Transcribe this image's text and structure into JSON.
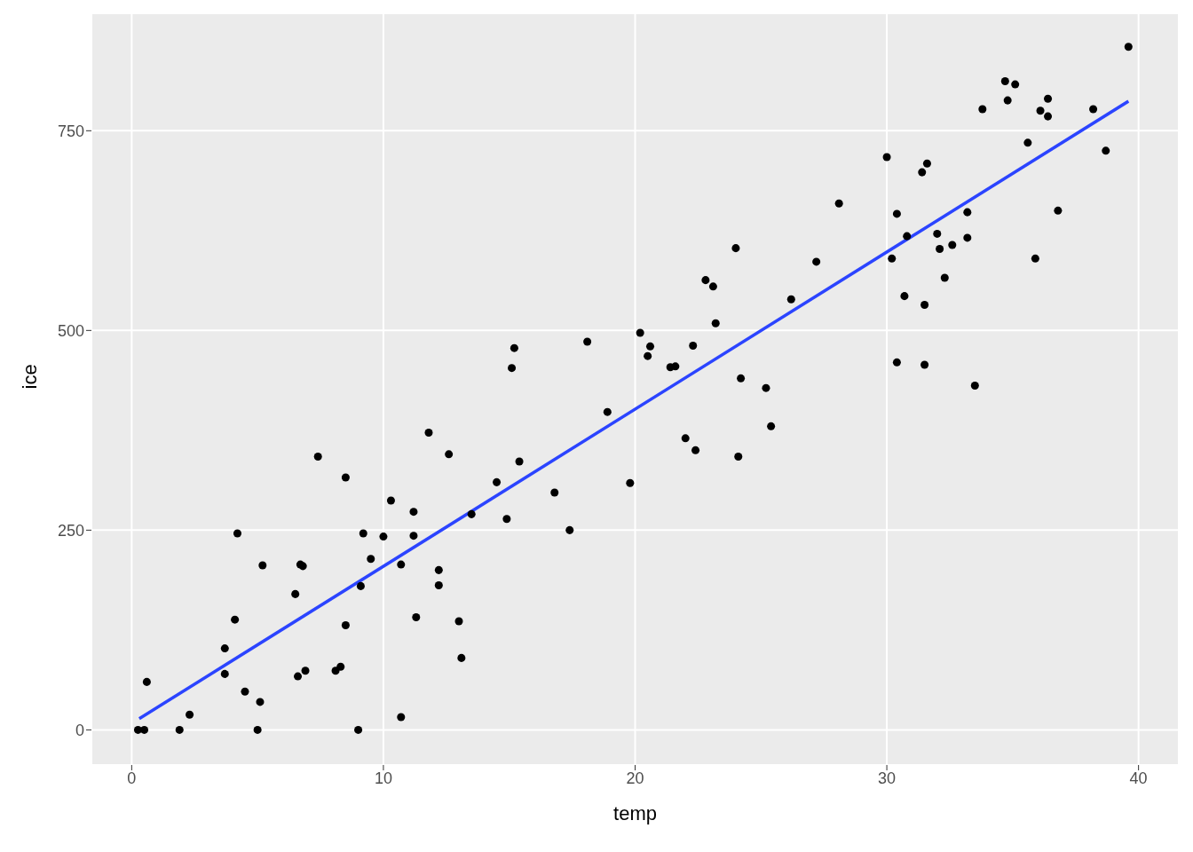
{
  "chart_data": {
    "type": "scatter",
    "xlabel": "temp",
    "ylabel": "ice",
    "xlim": [
      -1.6,
      41.6
    ],
    "ylim": [
      -44,
      897
    ],
    "xticks": [
      0,
      10,
      20,
      30,
      40
    ],
    "yticks": [
      0,
      250,
      500,
      750
    ],
    "grid": true,
    "marker": "circle",
    "x": [
      0.25,
      0.5,
      0.6,
      1.9,
      2.3,
      3.7,
      3.7,
      4.1,
      4.2,
      4.5,
      5.0,
      5.1,
      5.2,
      6.5,
      6.6,
      6.7,
      6.8,
      6.9,
      7.4,
      8.1,
      8.3,
      8.5,
      8.5,
      9.0,
      9.1,
      9.2,
      9.5,
      10.0,
      10.3,
      10.7,
      10.7,
      11.2,
      11.2,
      11.3,
      11.8,
      12.2,
      12.2,
      12.6,
      13.0,
      13.1,
      13.5,
      14.5,
      14.9,
      15.1,
      15.2,
      15.4,
      16.8,
      17.4,
      18.1,
      18.9,
      19.8,
      20.2,
      20.5,
      20.6,
      21.4,
      21.6,
      22.0,
      22.3,
      22.4,
      22.8,
      23.1,
      23.2,
      24.0,
      24.1,
      24.2,
      25.2,
      25.4,
      26.2,
      27.2,
      28.1,
      30.0,
      30.2,
      30.4,
      30.4,
      30.7,
      30.8,
      31.4,
      31.6,
      31.5,
      31.5,
      32.0,
      32.1,
      32.3,
      32.6,
      33.2,
      33.2,
      33.5,
      33.8,
      34.7,
      34.8,
      35.1,
      35.6,
      35.9,
      36.1,
      36.4,
      36.4,
      36.8,
      38.2,
      38.7,
      39.6
    ],
    "series": [
      {
        "color": "#000000",
        "values": [
          0,
          0,
          60,
          0,
          19,
          102,
          70,
          138,
          246,
          48,
          0,
          35,
          206,
          170,
          67,
          207,
          205,
          74,
          342,
          74,
          79,
          316,
          131,
          0,
          180,
          246,
          214,
          242,
          287,
          207,
          16,
          273,
          243,
          141,
          372,
          200,
          181,
          345,
          136,
          90,
          270,
          310,
          264,
          453,
          478,
          336,
          297,
          250,
          486,
          398,
          309,
          497,
          468,
          480,
          454,
          455,
          365,
          481,
          350,
          563,
          555,
          509,
          603,
          342,
          440,
          428,
          380,
          539,
          586,
          659,
          717,
          590,
          460,
          646,
          543,
          618,
          698,
          709,
          532,
          457,
          621,
          602,
          566,
          607,
          648,
          616,
          431,
          777,
          812,
          788,
          808,
          735,
          590,
          775,
          768,
          790,
          650,
          777,
          725,
          855
        ]
      },
      {
        "type": "line",
        "color": "#2b44ff",
        "line_style": "solid",
        "marker": "none",
        "x": [
          0.3,
          39.6
        ],
        "values": [
          14,
          787
        ]
      }
    ]
  }
}
